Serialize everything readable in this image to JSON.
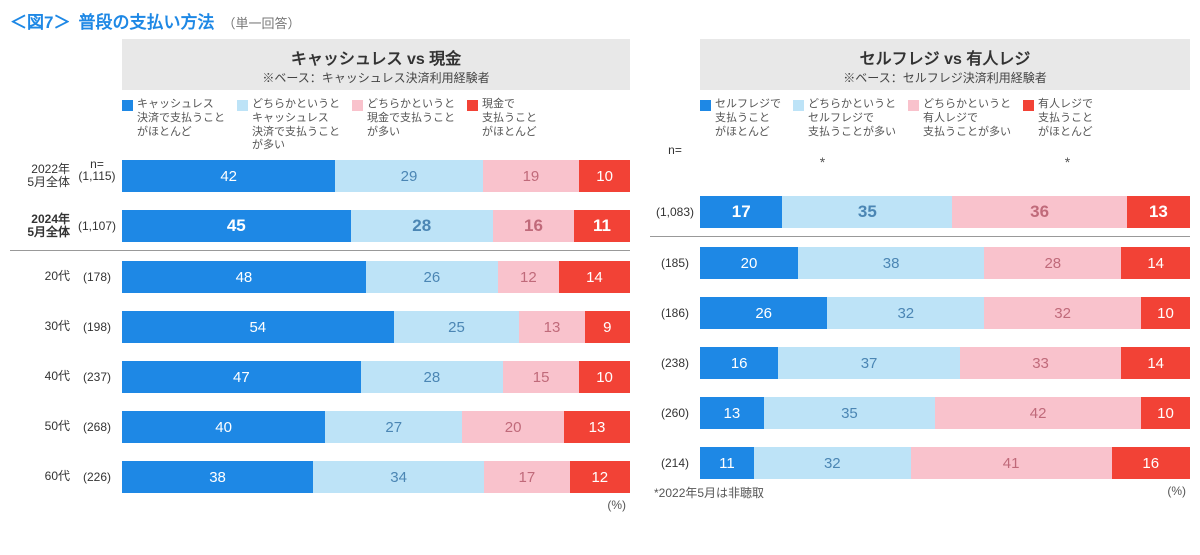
{
  "title": {
    "prefix": "＜図7＞",
    "main": "普段の支払い方法",
    "note": "（単一回答）"
  },
  "colors": {
    "c1": "#1e88e5",
    "c2": "#bde3f7",
    "c3": "#f9c2cc",
    "c4": "#f24236",
    "text_on_c1": "#ffffff",
    "text_on_c2": "#4b86b4",
    "text_on_c3": "#c06a7a",
    "text_on_c4": "#ffffff",
    "header_bg": "#e8e8e8"
  },
  "n_label": "n=",
  "pct_label": "(%)",
  "left": {
    "header_title": "キャッシュレス  vs  現金",
    "header_sub": "※ベース：キャッシュレス決済利用経験者",
    "legend": [
      "キャッシュレス\n決済で支払うこと\nがほとんど",
      "どちらかというと\nキャッシュレス\n決済で支払うこと\nが多い",
      "どちらかというと\n現金で支払うこと\nが多い",
      "現金で\n支払うこと\nがほとんど"
    ],
    "rows": [
      {
        "label": "2022年\n5月全体",
        "bold": false,
        "n": "(1,115)",
        "values": [
          42,
          29,
          19,
          10
        ]
      },
      {
        "label": "2024年\n5月全体",
        "bold": true,
        "n": "(1,107)",
        "values": [
          45,
          28,
          16,
          11
        ]
      }
    ],
    "rows2": [
      {
        "label": "20代",
        "n": "(178)",
        "values": [
          48,
          26,
          12,
          14
        ]
      },
      {
        "label": "30代",
        "n": "(198)",
        "values": [
          54,
          25,
          13,
          9
        ]
      },
      {
        "label": "40代",
        "n": "(237)",
        "values": [
          47,
          28,
          15,
          10
        ]
      },
      {
        "label": "50代",
        "n": "(268)",
        "values": [
          40,
          27,
          20,
          13
        ]
      },
      {
        "label": "60代",
        "n": "(226)",
        "values": [
          38,
          34,
          17,
          12
        ]
      }
    ]
  },
  "right": {
    "header_title": "セルフレジ  vs  有人レジ",
    "header_sub": "※ベース：セルフレジ決済利用経験者",
    "legend": [
      "セルフレジで\n支払うこと\nがほとんど",
      "どちらかというと\nセルフレジで\n支払うことが多い",
      "どちらかというと\n有人レジで\n支払うことが多い",
      "有人レジで\n支払うこと\nがほとんど"
    ],
    "rows": [
      {
        "empty": true,
        "star": "*                       *"
      },
      {
        "label": "",
        "bold": true,
        "n": "(1,083)",
        "values": [
          17,
          35,
          36,
          13
        ]
      }
    ],
    "rows2": [
      {
        "label": "",
        "n": "(185)",
        "values": [
          20,
          38,
          28,
          14
        ]
      },
      {
        "label": "",
        "n": "(186)",
        "values": [
          26,
          32,
          32,
          10
        ]
      },
      {
        "label": "",
        "n": "(238)",
        "values": [
          16,
          37,
          33,
          14
        ]
      },
      {
        "label": "",
        "n": "(260)",
        "values": [
          13,
          35,
          42,
          10
        ]
      },
      {
        "label": "",
        "n": "(214)",
        "values": [
          11,
          32,
          41,
          16
        ]
      }
    ],
    "footnote": "*2022年5月は非聴取"
  }
}
